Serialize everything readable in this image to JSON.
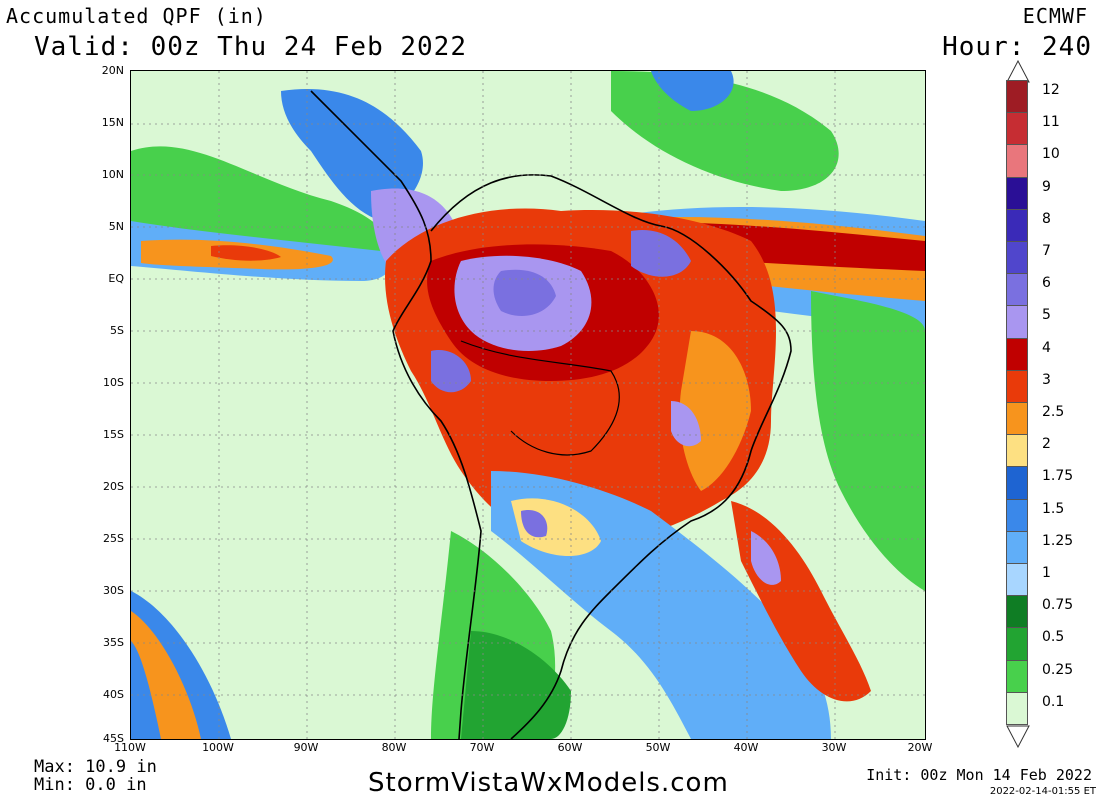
{
  "header": {
    "title": "Accumulated QPF (in)",
    "valid": "Valid: 00z Thu 24 Feb 2022",
    "model": "ECMWF",
    "hour": "Hour: 240"
  },
  "footer": {
    "max": "Max: 10.9 in",
    "min": "Min: 0.0 in",
    "site": "StormVistaWxModels.com",
    "init": "Init: 00z Mon 14 Feb 2022",
    "stamp": "2022-02-14-01:55 ET"
  },
  "axes": {
    "lat_labels": [
      "20N",
      "15N",
      "10N",
      "5N",
      "EQ",
      "5S",
      "10S",
      "15S",
      "20S",
      "25S",
      "30S",
      "35S",
      "40S",
      "45S"
    ],
    "lon_labels": [
      "110W",
      "100W",
      "90W",
      "80W",
      "70W",
      "60W",
      "50W",
      "40W",
      "30W",
      "20W"
    ]
  },
  "legend": {
    "labels": [
      "12",
      "11",
      "10",
      "9",
      "8",
      "7",
      "6",
      "5",
      "4",
      "3",
      "2.5",
      "2",
      "1.75",
      "1.5",
      "1.25",
      "1",
      "0.75",
      "0.5",
      "0.25",
      "0.1"
    ],
    "colors": [
      "#9e1c24",
      "#c62d33",
      "#e9767c",
      "#2a0f96",
      "#3a2ab8",
      "#5046cc",
      "#7a70e0",
      "#a996f0",
      "#c00000",
      "#e93a0a",
      "#f7941d",
      "#fde082",
      "#1e64d2",
      "#3a88ea",
      "#60aef8",
      "#a8d6ff",
      "#0f7d24",
      "#22a432",
      "#48d04c",
      "#daf8d4"
    ]
  }
}
